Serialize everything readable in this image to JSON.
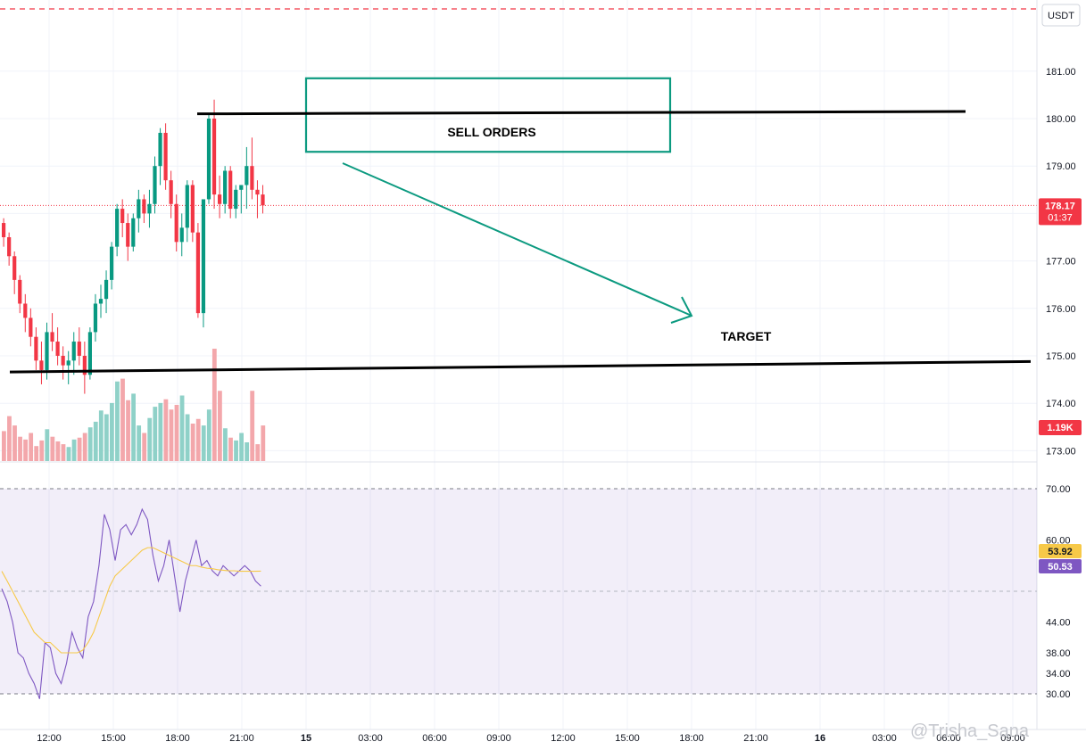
{
  "chart_data": [
    {
      "type": "candlestick",
      "currency": "USDT",
      "y_ticks": [
        "181.00",
        "180.00",
        "179.00",
        "178.00",
        "177.00",
        "176.00",
        "175.00",
        "174.00",
        "173.00"
      ],
      "ylim": [
        172.8,
        182.4
      ],
      "x_ticks": [
        "12:00",
        "15:00",
        "18:00",
        "21:00",
        "15",
        "03:00",
        "06:00",
        "09:00",
        "12:00",
        "15:00",
        "18:00",
        "21:00",
        "16",
        "03:00",
        "06:00",
        "09:00"
      ],
      "last_price": {
        "value": "178.17",
        "countdown": "01:37",
        "color": "#f23645"
      },
      "candles_ohlc": [
        [
          177.8,
          177.9,
          177.3,
          177.5
        ],
        [
          177.5,
          177.6,
          176.9,
          177.1
        ],
        [
          177.1,
          177.2,
          176.3,
          176.6
        ],
        [
          176.6,
          176.7,
          175.9,
          176.1
        ],
        [
          176.1,
          176.3,
          175.5,
          175.8
        ],
        [
          175.8,
          176.0,
          175.2,
          175.4
        ],
        [
          175.4,
          175.6,
          174.7,
          174.9
        ],
        [
          174.9,
          175.3,
          174.4,
          174.7
        ],
        [
          174.7,
          175.7,
          174.5,
          175.5
        ],
        [
          175.5,
          175.9,
          175.1,
          175.3
        ],
        [
          175.3,
          175.6,
          174.8,
          175.0
        ],
        [
          175.0,
          175.2,
          174.5,
          174.8
        ],
        [
          174.8,
          175.1,
          174.4,
          174.9
        ],
        [
          174.9,
          175.5,
          174.6,
          175.3
        ],
        [
          175.3,
          175.6,
          174.8,
          175.0
        ],
        [
          175.0,
          175.3,
          174.2,
          174.6
        ],
        [
          174.6,
          175.6,
          174.5,
          175.5
        ],
        [
          175.5,
          176.3,
          175.3,
          176.1
        ],
        [
          176.1,
          176.5,
          175.8,
          176.2
        ],
        [
          176.2,
          176.8,
          175.9,
          176.6
        ],
        [
          176.6,
          177.4,
          176.4,
          177.3
        ],
        [
          177.3,
          178.2,
          177.1,
          178.1
        ],
        [
          178.1,
          178.3,
          177.5,
          177.8
        ],
        [
          177.8,
          178.0,
          177.0,
          177.3
        ],
        [
          177.3,
          178.0,
          177.2,
          177.9
        ],
        [
          177.9,
          178.5,
          177.6,
          178.3
        ],
        [
          178.3,
          178.4,
          177.8,
          178.0
        ],
        [
          178.0,
          178.5,
          177.7,
          178.2
        ],
        [
          178.2,
          179.2,
          178.0,
          179.0
        ],
        [
          179.0,
          179.8,
          178.6,
          179.7
        ],
        [
          179.7,
          179.9,
          178.5,
          178.7
        ],
        [
          178.7,
          178.9,
          177.9,
          178.2
        ],
        [
          178.2,
          178.4,
          177.2,
          177.4
        ],
        [
          177.4,
          178.0,
          177.1,
          177.7
        ],
        [
          177.7,
          178.7,
          177.4,
          178.6
        ],
        [
          178.6,
          178.7,
          177.4,
          177.6
        ],
        [
          177.6,
          177.8,
          175.8,
          175.9
        ],
        [
          175.9,
          178.3,
          175.6,
          178.3
        ],
        [
          178.3,
          180.1,
          178.2,
          180.0
        ],
        [
          180.0,
          180.4,
          178.1,
          178.4
        ],
        [
          178.4,
          178.8,
          177.9,
          178.2
        ],
        [
          178.2,
          179.0,
          178.0,
          178.9
        ],
        [
          178.9,
          179.0,
          177.9,
          178.1
        ],
        [
          178.1,
          178.6,
          177.9,
          178.5
        ],
        [
          178.5,
          178.6,
          178.0,
          178.6
        ],
        [
          178.6,
          179.4,
          178.1,
          179.0
        ],
        [
          179.0,
          179.6,
          178.3,
          178.5
        ],
        [
          178.5,
          178.7,
          177.9,
          178.4
        ],
        [
          178.4,
          178.6,
          178.0,
          178.17
        ]
      ],
      "volume": {
        "label": "1.19K",
        "values": [
          0.32,
          0.48,
          0.38,
          0.26,
          0.23,
          0.3,
          0.16,
          0.22,
          0.34,
          0.26,
          0.21,
          0.18,
          0.15,
          0.23,
          0.25,
          0.3,
          0.36,
          0.42,
          0.54,
          0.5,
          0.62,
          0.85,
          0.88,
          0.65,
          0.72,
          0.38,
          0.3,
          0.46,
          0.58,
          0.62,
          0.66,
          0.55,
          0.6,
          0.7,
          0.5,
          0.4,
          0.45,
          0.38,
          0.55,
          1.2,
          0.75,
          0.35,
          0.25,
          0.22,
          0.3,
          0.2,
          0.75,
          0.18,
          0.38
        ],
        "up_color": "#8fd1c8",
        "down_color": "#f3a7ab"
      },
      "annotations": {
        "box_label": "SELL ORDERS",
        "target_label": "TARGET",
        "resistance_line": [
          180.1,
          180.15
        ],
        "support_line": [
          174.66,
          174.88
        ],
        "box_range": [
          179.3,
          180.85
        ]
      },
      "colors": {
        "up": "#089981",
        "down": "#f23645",
        "annotation": "#0c9a80"
      }
    },
    {
      "type": "line",
      "indicator": "oscillator",
      "y_ticks": [
        "70.00",
        "60.00",
        "44.00",
        "38.00",
        "34.00",
        "30.00"
      ],
      "series": [
        {
          "color": "#7e57c2",
          "values": [
            50.5,
            48,
            44,
            38,
            37,
            34,
            32,
            29,
            40,
            39,
            34,
            32,
            36,
            42,
            39,
            37,
            45,
            48,
            55,
            65,
            62,
            56,
            62,
            63,
            61,
            63,
            66,
            64,
            57,
            52,
            55,
            60,
            53,
            46,
            52,
            56,
            60,
            55,
            56,
            54,
            53,
            55,
            54,
            53,
            54,
            55,
            54,
            52,
            51
          ]
        },
        {
          "color": "#f7c948",
          "values": [
            53.9,
            52,
            50,
            48,
            46,
            44,
            42,
            41,
            40,
            40,
            39,
            38,
            38,
            38,
            38,
            38.5,
            40,
            42,
            45,
            48,
            51,
            53,
            54,
            55,
            56,
            57,
            58,
            58.5,
            58.5,
            58,
            57.5,
            57,
            56.5,
            56,
            55.5,
            55,
            55,
            54.7,
            54.5,
            54.4,
            54.2,
            54.1,
            54,
            54,
            53.9,
            53.9,
            53.9,
            53.9,
            53.92
          ]
        }
      ],
      "badge_signal": {
        "value": "53.92",
        "color": "#f7c948"
      },
      "badge_line": {
        "value": "50.53",
        "color": "#7e57c2"
      }
    }
  ],
  "watermark": "@Trisha_Sana"
}
